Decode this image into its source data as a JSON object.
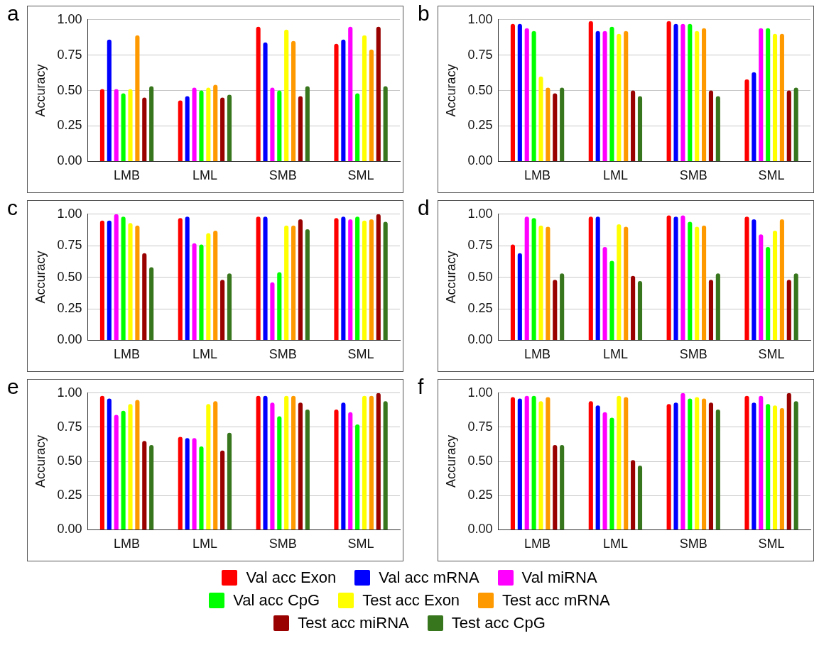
{
  "chart_data": [
    {
      "type": "bar",
      "title": "a",
      "ylabel": "Accuracy",
      "categories": [
        "LMB",
        "LML",
        "SMB",
        "SML"
      ],
      "ylim": [
        0,
        1
      ],
      "yticks": [
        {
          "value": 0,
          "label": "0.00"
        },
        {
          "value": 0.25,
          "label": "0.25"
        },
        {
          "value": 0.5,
          "label": "0.50"
        },
        {
          "value": 0.75,
          "label": "0.75"
        },
        {
          "value": 1,
          "label": "1.00"
        }
      ],
      "grid": "y",
      "legend": "bottom",
      "series": [
        {
          "name": "Val acc Exon",
          "color": "#ff0000",
          "values": [
            0.51,
            0.43,
            0.95,
            0.83
          ]
        },
        {
          "name": "Val acc mRNA",
          "color": "#0000ff",
          "values": [
            0.86,
            0.46,
            0.84,
            0.86
          ]
        },
        {
          "name": "Val miRNA",
          "color": "#ff00ff",
          "values": [
            0.51,
            0.52,
            0.52,
            0.95
          ]
        },
        {
          "name": "Val acc CpG",
          "color": "#00ff00",
          "values": [
            0.48,
            0.5,
            0.5,
            0.48
          ]
        },
        {
          "name": "Test acc Exon",
          "color": "#ffff00",
          "values": [
            0.51,
            0.52,
            0.93,
            0.89
          ]
        },
        {
          "name": "Test acc mRNA",
          "color": "#ff9900",
          "values": [
            0.89,
            0.54,
            0.85,
            0.79
          ]
        },
        {
          "name": "Test acc miRNA",
          "color": "#990000",
          "values": [
            0.45,
            0.45,
            0.46,
            0.95
          ]
        },
        {
          "name": "Test acc CpG",
          "color": "#38761d",
          "values": [
            0.53,
            0.47,
            0.53,
            0.53
          ]
        }
      ]
    },
    {
      "type": "bar",
      "title": "b",
      "ylabel": "Accuracy",
      "categories": [
        "LMB",
        "LML",
        "SMB",
        "SML"
      ],
      "ylim": [
        0,
        1
      ],
      "yticks": [
        {
          "value": 0,
          "label": "0.00"
        },
        {
          "value": 0.25,
          "label": "0.25"
        },
        {
          "value": 0.5,
          "label": "0.50"
        },
        {
          "value": 0.75,
          "label": "0.75"
        },
        {
          "value": 1,
          "label": "1.00"
        }
      ],
      "grid": "y",
      "series": [
        {
          "color": "#ff0000",
          "values": [
            0.97,
            0.99,
            0.99,
            0.58
          ]
        },
        {
          "color": "#0000ff",
          "values": [
            0.97,
            0.92,
            0.97,
            0.63
          ]
        },
        {
          "color": "#ff00ff",
          "values": [
            0.94,
            0.92,
            0.97,
            0.94
          ]
        },
        {
          "color": "#00ff00",
          "values": [
            0.92,
            0.95,
            0.97,
            0.94
          ]
        },
        {
          "color": "#ffff00",
          "values": [
            0.6,
            0.9,
            0.92,
            0.9
          ]
        },
        {
          "color": "#ff9900",
          "values": [
            0.52,
            0.92,
            0.94,
            0.9
          ]
        },
        {
          "color": "#990000",
          "values": [
            0.48,
            0.5,
            0.5,
            0.5
          ]
        },
        {
          "color": "#38761d",
          "values": [
            0.52,
            0.46,
            0.46,
            0.52
          ]
        }
      ]
    },
    {
      "type": "bar",
      "title": "c",
      "ylabel": "Accuracy",
      "categories": [
        "LMB",
        "LML",
        "SMB",
        "SML"
      ],
      "ylim": [
        0,
        1
      ],
      "yticks": [
        {
          "value": 0,
          "label": "0.00"
        },
        {
          "value": 0.25,
          "label": "0.25"
        },
        {
          "value": 0.5,
          "label": "0.50"
        },
        {
          "value": 0.75,
          "label": "0.75"
        },
        {
          "value": 1,
          "label": "1.00"
        }
      ],
      "grid": "y",
      "series": [
        {
          "color": "#ff0000",
          "values": [
            0.95,
            0.97,
            0.98,
            0.97
          ]
        },
        {
          "color": "#0000ff",
          "values": [
            0.95,
            0.98,
            0.98,
            0.98
          ]
        },
        {
          "color": "#ff00ff",
          "values": [
            1.0,
            0.77,
            0.46,
            0.96
          ]
        },
        {
          "color": "#00ff00",
          "values": [
            0.98,
            0.76,
            0.54,
            0.98
          ]
        },
        {
          "color": "#ffff00",
          "values": [
            0.93,
            0.85,
            0.91,
            0.95
          ]
        },
        {
          "color": "#ff9900",
          "values": [
            0.91,
            0.87,
            0.91,
            0.96
          ]
        },
        {
          "color": "#990000",
          "values": [
            0.69,
            0.48,
            0.96,
            1.0
          ]
        },
        {
          "color": "#38761d",
          "values": [
            0.58,
            0.53,
            0.88,
            0.94
          ]
        }
      ]
    },
    {
      "type": "bar",
      "title": "d",
      "ylabel": "Accuracy",
      "categories": [
        "LMB",
        "LML",
        "SMB",
        "SML"
      ],
      "ylim": [
        0,
        1
      ],
      "yticks": [
        {
          "value": 0,
          "label": "0.00"
        },
        {
          "value": 0.25,
          "label": "0.25"
        },
        {
          "value": 0.5,
          "label": "0.50"
        },
        {
          "value": 0.75,
          "label": "0.75"
        },
        {
          "value": 1,
          "label": "1.00"
        }
      ],
      "grid": "y",
      "series": [
        {
          "color": "#ff0000",
          "values": [
            0.76,
            0.98,
            0.99,
            0.98
          ]
        },
        {
          "color": "#0000ff",
          "values": [
            0.69,
            0.98,
            0.98,
            0.96
          ]
        },
        {
          "color": "#ff00ff",
          "values": [
            0.98,
            0.74,
            0.99,
            0.84
          ]
        },
        {
          "color": "#00ff00",
          "values": [
            0.97,
            0.63,
            0.94,
            0.74
          ]
        },
        {
          "color": "#ffff00",
          "values": [
            0.91,
            0.92,
            0.9,
            0.87
          ]
        },
        {
          "color": "#ff9900",
          "values": [
            0.9,
            0.9,
            0.91,
            0.96
          ]
        },
        {
          "color": "#990000",
          "values": [
            0.48,
            0.51,
            0.48,
            0.48
          ]
        },
        {
          "color": "#38761d",
          "values": [
            0.53,
            0.47,
            0.53,
            0.53
          ]
        }
      ]
    },
    {
      "type": "bar",
      "title": "e",
      "ylabel": "Accuracy",
      "categories": [
        "LMB",
        "LML",
        "SMB",
        "SML"
      ],
      "ylim": [
        0,
        1
      ],
      "yticks": [
        {
          "value": 0,
          "label": "0.00"
        },
        {
          "value": 0.25,
          "label": "0.25"
        },
        {
          "value": 0.5,
          "label": "0.50"
        },
        {
          "value": 0.75,
          "label": "0.75"
        },
        {
          "value": 1,
          "label": "1.00"
        }
      ],
      "grid": "y",
      "series": [
        {
          "color": "#ff0000",
          "values": [
            0.98,
            0.68,
            0.98,
            0.88
          ]
        },
        {
          "color": "#0000ff",
          "values": [
            0.96,
            0.67,
            0.98,
            0.93
          ]
        },
        {
          "color": "#ff00ff",
          "values": [
            0.84,
            0.67,
            0.93,
            0.86
          ]
        },
        {
          "color": "#00ff00",
          "values": [
            0.87,
            0.61,
            0.83,
            0.77
          ]
        },
        {
          "color": "#ffff00",
          "values": [
            0.92,
            0.92,
            0.98,
            0.98
          ]
        },
        {
          "color": "#ff9900",
          "values": [
            0.95,
            0.94,
            0.98,
            0.98
          ]
        },
        {
          "color": "#990000",
          "values": [
            0.65,
            0.58,
            0.93,
            1.0
          ]
        },
        {
          "color": "#38761d",
          "values": [
            0.62,
            0.71,
            0.88,
            0.94
          ]
        }
      ]
    },
    {
      "type": "bar",
      "title": "f",
      "ylabel": "Accuracy",
      "categories": [
        "LMB",
        "LML",
        "SMB",
        "SML"
      ],
      "ylim": [
        0,
        1
      ],
      "yticks": [
        {
          "value": 0,
          "label": "0.00"
        },
        {
          "value": 0.25,
          "label": "0.25"
        },
        {
          "value": 0.5,
          "label": "0.50"
        },
        {
          "value": 0.75,
          "label": "0.75"
        },
        {
          "value": 1,
          "label": "1.00"
        }
      ],
      "grid": "y",
      "series": [
        {
          "color": "#ff0000",
          "values": [
            0.97,
            0.94,
            0.92,
            0.98
          ]
        },
        {
          "color": "#0000ff",
          "values": [
            0.96,
            0.91,
            0.93,
            0.93
          ]
        },
        {
          "color": "#ff00ff",
          "values": [
            0.98,
            0.86,
            1.0,
            0.98
          ]
        },
        {
          "color": "#00ff00",
          "values": [
            0.98,
            0.82,
            0.96,
            0.92
          ]
        },
        {
          "color": "#ffff00",
          "values": [
            0.94,
            0.98,
            0.97,
            0.91
          ]
        },
        {
          "color": "#ff9900",
          "values": [
            0.97,
            0.97,
            0.96,
            0.89
          ]
        },
        {
          "color": "#990000",
          "values": [
            0.62,
            0.51,
            0.93,
            1.0
          ]
        },
        {
          "color": "#38761d",
          "values": [
            0.62,
            0.47,
            0.88,
            0.94
          ]
        }
      ]
    }
  ]
}
